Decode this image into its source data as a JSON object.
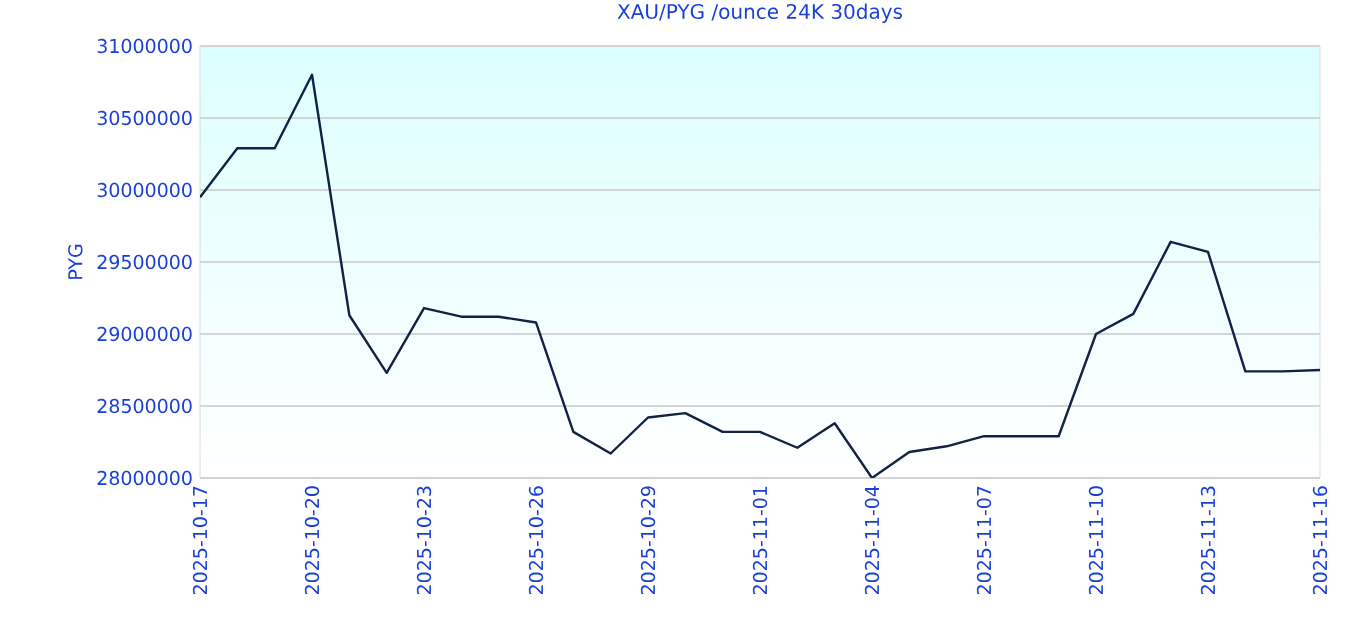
{
  "chart_data": {
    "type": "line",
    "title": "XAU/PYG /ounce 24K 30days",
    "ylabel": "PYG",
    "x": [
      "2025-10-17",
      "2025-10-18",
      "2025-10-19",
      "2025-10-20",
      "2025-10-21",
      "2025-10-22",
      "2025-10-23",
      "2025-10-24",
      "2025-10-25",
      "2025-10-26",
      "2025-10-27",
      "2025-10-28",
      "2025-10-29",
      "2025-10-30",
      "2025-10-31",
      "2025-11-01",
      "2025-11-02",
      "2025-11-03",
      "2025-11-04",
      "2025-11-05",
      "2025-11-06",
      "2025-11-07",
      "2025-11-08",
      "2025-11-09",
      "2025-11-10",
      "2025-11-11",
      "2025-11-12",
      "2025-11-13",
      "2025-11-14",
      "2025-11-15",
      "2025-11-16"
    ],
    "series": [
      {
        "color": "#112244",
        "values": [
          29950000,
          30290000,
          30290000,
          30800000,
          29130000,
          28730000,
          29180000,
          29120000,
          29120000,
          29080000,
          28320000,
          28170000,
          28420000,
          28450000,
          28320000,
          28320000,
          28210000,
          28380000,
          28000000,
          28180000,
          28220000,
          28290000,
          28290000,
          28290000,
          29000000,
          29140000,
          29640000,
          29570000,
          28740000,
          28740000,
          28750000
        ]
      }
    ],
    "xlim": [
      "2025-10-17",
      "2025-11-16"
    ],
    "xticks": [
      "2025-10-17",
      "2025-10-20",
      "2025-10-23",
      "2025-10-26",
      "2025-10-29",
      "2025-11-01",
      "2025-11-04",
      "2025-11-07",
      "2025-11-10",
      "2025-11-13",
      "2025-11-16"
    ],
    "ylim": [
      28000000,
      31000000
    ],
    "yticks": [
      28000000,
      28500000,
      29000000,
      29500000,
      30000000,
      30500000,
      31000000
    ],
    "grid": "y",
    "marker": "none",
    "line_style": "solid"
  }
}
